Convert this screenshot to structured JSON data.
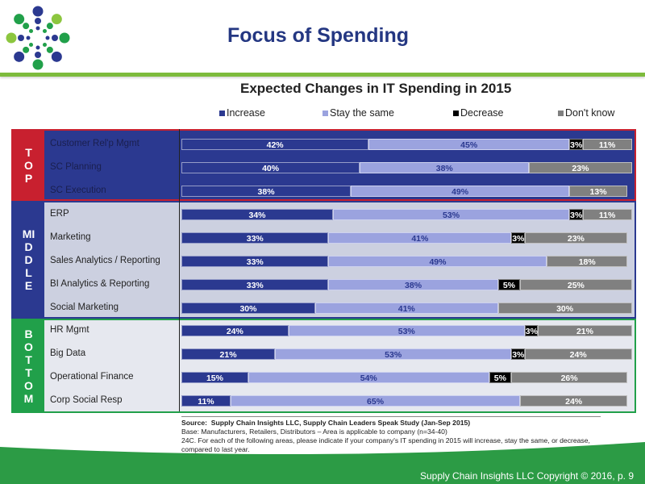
{
  "page": {
    "title": "Focus of Spending",
    "footer": "Supply Chain Insights LLC Copyright © 2016, p. 9",
    "logo_icon": "dot-burst-logo-icon"
  },
  "colors": {
    "increase": "#2b3990",
    "stay": "#9ba3df",
    "decrease": "#000000",
    "dont_know": "#808080",
    "top_accent": "#c8202f",
    "middle_accent": "#2b3990",
    "bottom_accent": "#21a04a",
    "title_blue": "#243782",
    "rule_green": "#7dbb3c"
  },
  "source": {
    "line1_label": "Source:",
    "line1": "Supply Chain Insights LLC, Supply Chain Leaders Speak Study (Jan-Sep 2015)",
    "line2": "Base:  Manufacturers, Retailers, Distributors – Area is applicable to company (n=34-40)",
    "line3": "24C. For each of the following areas, please indicate if your company's IT spending in 2015 will increase, stay the same, or decrease, compared to last year."
  },
  "chart_data": {
    "type": "bar",
    "orientation": "horizontal-stacked-100",
    "title": "Expected Changes in IT Spending in 2015",
    "xlabel": "",
    "ylabel": "",
    "xlim": [
      0,
      100
    ],
    "legend_position": "top",
    "legend": [
      "Increase",
      "Stay the same",
      "Decrease",
      "Don't know"
    ],
    "groups": [
      {
        "name": "TOP",
        "label_chars": [
          "T",
          "O",
          "P"
        ],
        "categories": [
          "Customer Rel'p Mgmt",
          "SC Planning",
          "SC Execution"
        ],
        "series": [
          {
            "name": "Increase",
            "values": [
              42,
              40,
              38
            ]
          },
          {
            "name": "Stay the same",
            "values": [
              45,
              38,
              49
            ]
          },
          {
            "name": "Decrease",
            "values": [
              3,
              0,
              0
            ]
          },
          {
            "name": "Don't know",
            "values": [
              11,
              23,
              13
            ]
          }
        ]
      },
      {
        "name": "MIDDLE",
        "label_chars": [
          "MI",
          "D",
          "D",
          "L",
          "E"
        ],
        "categories": [
          "ERP",
          "Marketing",
          "Sales Analytics / Reporting",
          "BI Analytics & Reporting",
          "Social Marketing"
        ],
        "series": [
          {
            "name": "Increase",
            "values": [
              34,
              33,
              33,
              33,
              30
            ]
          },
          {
            "name": "Stay the same",
            "values": [
              53,
              41,
              49,
              38,
              41
            ]
          },
          {
            "name": "Decrease",
            "values": [
              3,
              3,
              0,
              5,
              0
            ]
          },
          {
            "name": "Don't know",
            "values": [
              11,
              23,
              18,
              25,
              30
            ]
          }
        ]
      },
      {
        "name": "BOTTOM",
        "label_chars": [
          "B",
          "O",
          "T",
          "T",
          "O",
          "M"
        ],
        "categories": [
          "HR Mgmt",
          "Big Data",
          "Operational Finance",
          "Corp Social Resp"
        ],
        "series": [
          {
            "name": "Increase",
            "values": [
              24,
              21,
              15,
              11
            ]
          },
          {
            "name": "Stay the same",
            "values": [
              53,
              53,
              54,
              65
            ]
          },
          {
            "name": "Decrease",
            "values": [
              3,
              3,
              5,
              0
            ]
          },
          {
            "name": "Don't know",
            "values": [
              21,
              24,
              26,
              24
            ]
          }
        ]
      }
    ]
  }
}
